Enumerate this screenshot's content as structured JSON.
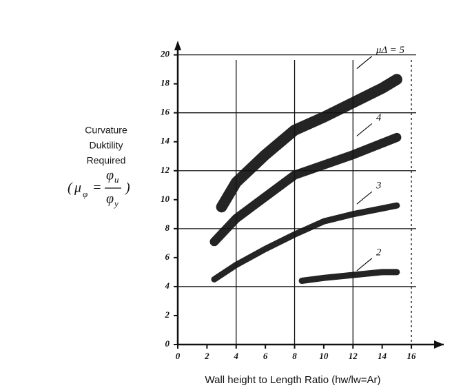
{
  "chart_data": {
    "type": "line",
    "x_label": "Wall height to Length Ratio (hw/lw=Ar)",
    "y_label": [
      "Curvature",
      "Duktility",
      "Required"
    ],
    "formula": {
      "open": "(",
      "lhs": "μ",
      "lhs_sub": "φ",
      "eq": "=",
      "num": "φ",
      "num_sub": "u",
      "den": "φ",
      "den_sub": "y",
      "close": ")"
    },
    "xlim": [
      0,
      16.8
    ],
    "ylim": [
      0,
      20.6
    ],
    "xticks": [
      0,
      2,
      4,
      6,
      8,
      10,
      12,
      14,
      16
    ],
    "yticks": [
      0,
      2,
      4,
      6,
      8,
      10,
      12,
      14,
      16,
      18,
      20
    ],
    "grid": true,
    "series": [
      {
        "name": "μΔ = 5",
        "color": "#111111",
        "x": [
          3,
          4,
          6,
          8,
          10,
          12,
          14,
          15
        ],
        "values": [
          9.5,
          11.2,
          13.1,
          14.8,
          15.7,
          16.7,
          17.7,
          18.3
        ]
      },
      {
        "name": "4",
        "color": "#111111",
        "x": [
          2.5,
          4,
          6,
          8,
          10,
          12,
          14,
          15
        ],
        "values": [
          7.1,
          8.7,
          10.2,
          11.7,
          12.4,
          13.1,
          13.9,
          14.3
        ]
      },
      {
        "name": "3",
        "color": "#111111",
        "x": [
          2.5,
          4,
          6,
          8,
          10,
          12,
          14,
          15
        ],
        "values": [
          4.5,
          5.5,
          6.6,
          7.6,
          8.5,
          9.0,
          9.4,
          9.6
        ]
      },
      {
        "name": "2",
        "color": "#111111",
        "x": [
          8.5,
          10,
          12,
          14,
          15
        ],
        "values": [
          4.4,
          4.6,
          4.8,
          5.0,
          5.0
        ]
      }
    ]
  }
}
